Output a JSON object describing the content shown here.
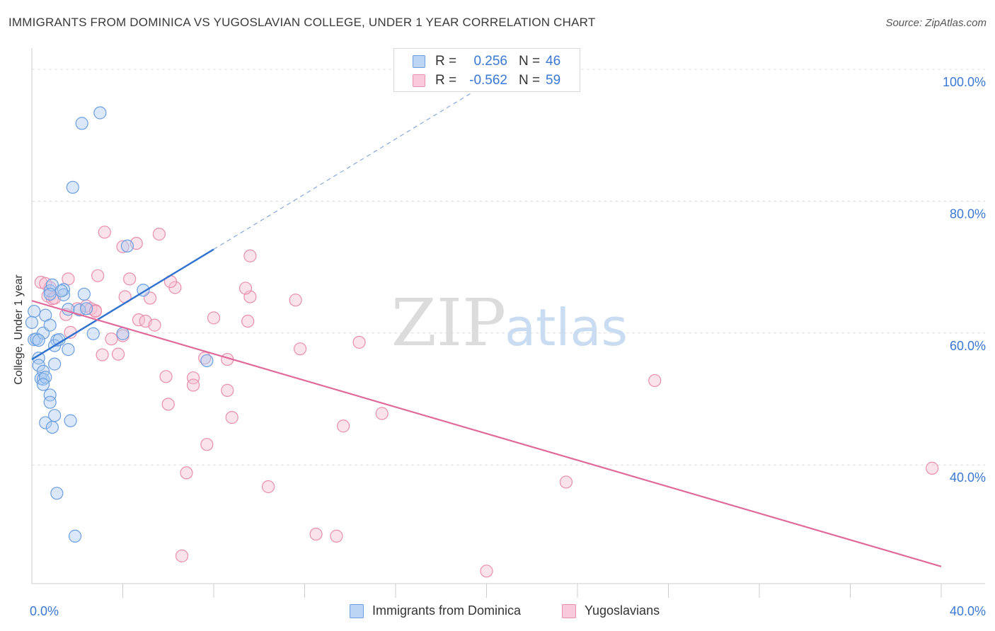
{
  "title": "IMMIGRANTS FROM DOMINICA VS YUGOSLAVIAN COLLEGE, UNDER 1 YEAR CORRELATION CHART",
  "source": "Source: ZipAtlas.com",
  "watermark": {
    "zip": "ZIP",
    "atlas": "atlas"
  },
  "legend": {
    "rows": [
      {
        "r_label": "R =",
        "r_value": "0.256",
        "n_label": "N =",
        "n_value": "46"
      },
      {
        "r_label": "R =",
        "r_value": "-0.562",
        "n_label": "N =",
        "n_value": "59"
      }
    ]
  },
  "bottom_legend": {
    "series1": "Immigrants from Dominica",
    "series2": "Yugoslavians"
  },
  "colors": {
    "blue_fill": "#aecbf2",
    "blue_stroke": "#6b9ee0",
    "blue_line": "#2f72d0",
    "pink_fill": "#f6c1d3",
    "pink_stroke": "#e88eae",
    "pink_line": "#e0689a",
    "axis_text": "#3a78d4",
    "grid": "#dddddd"
  },
  "chart_data": {
    "type": "scatter",
    "title": "IMMIGRANTS FROM DOMINICA VS YUGOSLAVIAN COLLEGE, UNDER 1 YEAR CORRELATION CHART",
    "ylabel": "College, Under 1 year",
    "xlabel": "",
    "xlim": [
      0,
      40
    ],
    "ylim": [
      22,
      103
    ],
    "x_tick_labels": [
      {
        "x": 0,
        "label": "0.0%"
      },
      {
        "x": 40,
        "label": "40.0%"
      }
    ],
    "x_minor_ticks": [
      4,
      8,
      12,
      16,
      20,
      24,
      28,
      32,
      36,
      40
    ],
    "y_ticks": [
      {
        "y": 100,
        "label": "100.0%"
      },
      {
        "y": 80,
        "label": "80.0%"
      },
      {
        "y": 60,
        "label": "60.0%"
      },
      {
        "y": 40,
        "label": "40.0%"
      }
    ],
    "grid": true,
    "legend_position": "top-center",
    "series": [
      {
        "name": "Immigrants from Dominica",
        "color": "#6b9ee0",
        "r": 0.256,
        "n": 46,
        "trend": {
          "x1": 0,
          "y1": 56.0,
          "x2": 8.0,
          "y2": 72.7,
          "dash_to_x": 20.0,
          "dash_to_y": 97.8
        },
        "points": [
          [
            2.2,
            91.8
          ],
          [
            3.0,
            93.4
          ],
          [
            1.8,
            82.1
          ],
          [
            4.2,
            73.2
          ],
          [
            4.9,
            66.5
          ],
          [
            1.6,
            63.6
          ],
          [
            0.1,
            63.3
          ],
          [
            0.0,
            61.6
          ],
          [
            0.1,
            59.0
          ],
          [
            0.2,
            59.1
          ],
          [
            0.6,
            62.7
          ],
          [
            0.8,
            66.4
          ],
          [
            0.9,
            67.3
          ],
          [
            1.4,
            66.6
          ],
          [
            1.4,
            65.8
          ],
          [
            2.3,
            65.9
          ],
          [
            0.5,
            60.0
          ],
          [
            0.8,
            61.2
          ],
          [
            1.1,
            58.9
          ],
          [
            1.0,
            58.1
          ],
          [
            1.6,
            57.5
          ],
          [
            0.3,
            56.2
          ],
          [
            0.3,
            55.1
          ],
          [
            0.5,
            54.2
          ],
          [
            0.4,
            53.1
          ],
          [
            0.5,
            53.0
          ],
          [
            1.0,
            55.3
          ],
          [
            0.6,
            53.3
          ],
          [
            2.7,
            59.9
          ],
          [
            4.0,
            59.9
          ],
          [
            0.8,
            50.6
          ],
          [
            0.8,
            49.5
          ],
          [
            1.0,
            47.5
          ],
          [
            0.6,
            46.4
          ],
          [
            0.9,
            45.7
          ],
          [
            1.7,
            46.7
          ],
          [
            7.7,
            55.8
          ],
          [
            1.1,
            35.7
          ],
          [
            1.9,
            29.2
          ],
          [
            0.5,
            52.2
          ],
          [
            1.3,
            66.4
          ],
          [
            0.3,
            58.9
          ],
          [
            2.1,
            63.5
          ],
          [
            1.2,
            59.0
          ],
          [
            2.4,
            63.7
          ],
          [
            0.8,
            65.9
          ]
        ]
      },
      {
        "name": "Yugoslavians",
        "color": "#e88eae",
        "r": -0.562,
        "n": 59,
        "trend": {
          "x1": 0,
          "y1": 64.9,
          "x2": 40.0,
          "y2": 24.6
        },
        "points": [
          [
            0.4,
            67.7
          ],
          [
            0.8,
            66.9
          ],
          [
            0.7,
            65.6
          ],
          [
            0.9,
            65.2
          ],
          [
            1.5,
            62.8
          ],
          [
            1.6,
            68.2
          ],
          [
            2.0,
            63.7
          ],
          [
            2.4,
            64.1
          ],
          [
            2.6,
            63.7
          ],
          [
            2.8,
            63.4
          ],
          [
            2.9,
            68.7
          ],
          [
            3.2,
            75.3
          ],
          [
            4.0,
            73.1
          ],
          [
            4.6,
            73.6
          ],
          [
            5.6,
            75.0
          ],
          [
            4.3,
            68.2
          ],
          [
            5.2,
            65.3
          ],
          [
            6.3,
            66.9
          ],
          [
            6.1,
            67.8
          ],
          [
            4.1,
            65.5
          ],
          [
            4.7,
            62.0
          ],
          [
            5.0,
            61.8
          ],
          [
            5.4,
            61.2
          ],
          [
            3.5,
            59.1
          ],
          [
            3.1,
            56.7
          ],
          [
            3.8,
            56.8
          ],
          [
            4.0,
            59.6
          ],
          [
            8.0,
            62.3
          ],
          [
            9.6,
            65.5
          ],
          [
            9.6,
            71.7
          ],
          [
            9.4,
            66.8
          ],
          [
            9.5,
            61.8
          ],
          [
            11.6,
            65.0
          ],
          [
            11.8,
            57.6
          ],
          [
            14.4,
            58.6
          ],
          [
            7.6,
            56.2
          ],
          [
            8.6,
            56.0
          ],
          [
            5.9,
            53.4
          ],
          [
            7.1,
            53.2
          ],
          [
            7.1,
            52.1
          ],
          [
            8.6,
            51.3
          ],
          [
            6.0,
            49.2
          ],
          [
            8.8,
            47.2
          ],
          [
            15.4,
            47.8
          ],
          [
            13.7,
            45.9
          ],
          [
            7.7,
            43.1
          ],
          [
            6.8,
            38.8
          ],
          [
            10.4,
            36.7
          ],
          [
            23.5,
            37.4
          ],
          [
            27.4,
            52.8
          ],
          [
            39.6,
            39.5
          ],
          [
            12.5,
            29.5
          ],
          [
            13.4,
            29.2
          ],
          [
            6.6,
            26.2
          ],
          [
            20.0,
            23.9
          ],
          [
            1.7,
            60.1
          ],
          [
            2.8,
            63.3
          ],
          [
            0.6,
            67.5
          ],
          [
            1.0,
            65.3
          ]
        ]
      }
    ]
  }
}
